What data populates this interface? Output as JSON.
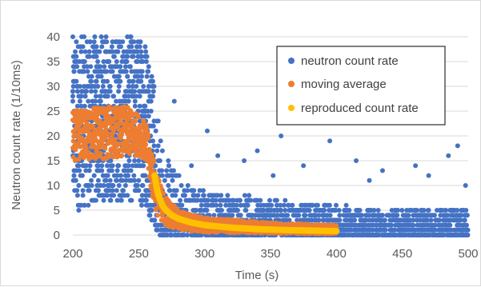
{
  "chart_data": {
    "type": "scatter",
    "title": "",
    "xlabel": "Time (s)",
    "ylabel": "Neutron count rate (1/10ms)",
    "xlim": [
      200,
      500
    ],
    "ylim": [
      0,
      40
    ],
    "x_ticks": [
      200,
      250,
      300,
      350,
      400,
      450,
      500
    ],
    "y_ticks": [
      0,
      5,
      10,
      15,
      20,
      25,
      30,
      35,
      40
    ],
    "grid": "horizontal",
    "legend_position": "top-right",
    "series": [
      {
        "name": "neutron count rate",
        "color": "#4472c4",
        "marker": "dot",
        "envelope": [
          {
            "x": 200,
            "low": 5,
            "high": 40
          },
          {
            "x": 215,
            "low": 6,
            "high": 40
          },
          {
            "x": 230,
            "low": 7,
            "high": 40
          },
          {
            "x": 245,
            "low": 7,
            "high": 40
          },
          {
            "x": 255,
            "low": 6,
            "high": 40
          },
          {
            "x": 258,
            "low": 4,
            "high": 38
          },
          {
            "x": 262,
            "low": 1,
            "high": 30
          },
          {
            "x": 266,
            "low": 0,
            "high": 22
          },
          {
            "x": 272,
            "low": 0,
            "high": 15
          },
          {
            "x": 285,
            "low": 0,
            "high": 11
          },
          {
            "x": 300,
            "low": 0,
            "high": 9
          },
          {
            "x": 350,
            "low": 0,
            "high": 7
          },
          {
            "x": 400,
            "low": 0,
            "high": 6
          },
          {
            "x": 450,
            "low": 0,
            "high": 5
          },
          {
            "x": 500,
            "low": 0,
            "high": 5
          }
        ]
      },
      {
        "name": "moving average",
        "color": "#ed7d31",
        "marker": "dot",
        "envelope": [
          {
            "x": 200,
            "low": 15,
            "high": 25
          },
          {
            "x": 220,
            "low": 15,
            "high": 26
          },
          {
            "x": 240,
            "low": 16,
            "high": 26
          },
          {
            "x": 252,
            "low": 16,
            "high": 24
          },
          {
            "x": 256,
            "low": 14,
            "high": 22
          },
          {
            "x": 260,
            "low": 8,
            "high": 17
          },
          {
            "x": 264,
            "low": 4,
            "high": 12
          },
          {
            "x": 270,
            "low": 2,
            "high": 8
          },
          {
            "x": 280,
            "low": 1,
            "high": 5
          },
          {
            "x": 300,
            "low": 0.5,
            "high": 3.5
          },
          {
            "x": 350,
            "low": 0.3,
            "high": 2.5
          },
          {
            "x": 400,
            "low": 0.2,
            "high": 2
          }
        ]
      },
      {
        "name": "reproduced count rate",
        "color": "#ffc000",
        "marker": "dot",
        "x": [
          262,
          264,
          266,
          268,
          270,
          275,
          280,
          290,
          300,
          320,
          340,
          360,
          380,
          400
        ],
        "y": [
          12,
          9,
          7.2,
          6,
          5.2,
          4,
          3.3,
          2.5,
          2,
          1.5,
          1.2,
          1.0,
          0.9,
          0.8
        ]
      }
    ],
    "isolated_points": [
      {
        "x": 277,
        "y": 27
      },
      {
        "x": 302,
        "y": 21
      },
      {
        "x": 358,
        "y": 20
      },
      {
        "x": 395,
        "y": 19
      },
      {
        "x": 492,
        "y": 18
      },
      {
        "x": 340,
        "y": 17
      },
      {
        "x": 330,
        "y": 15
      },
      {
        "x": 415,
        "y": 15
      },
      {
        "x": 460,
        "y": 14
      },
      {
        "x": 310,
        "y": 16
      },
      {
        "x": 485,
        "y": 16
      },
      {
        "x": 435,
        "y": 13
      },
      {
        "x": 375,
        "y": 14
      },
      {
        "x": 290,
        "y": 14
      },
      {
        "x": 470,
        "y": 12
      },
      {
        "x": 352,
        "y": 12
      },
      {
        "x": 425,
        "y": 11
      },
      {
        "x": 498,
        "y": 10
      }
    ]
  }
}
